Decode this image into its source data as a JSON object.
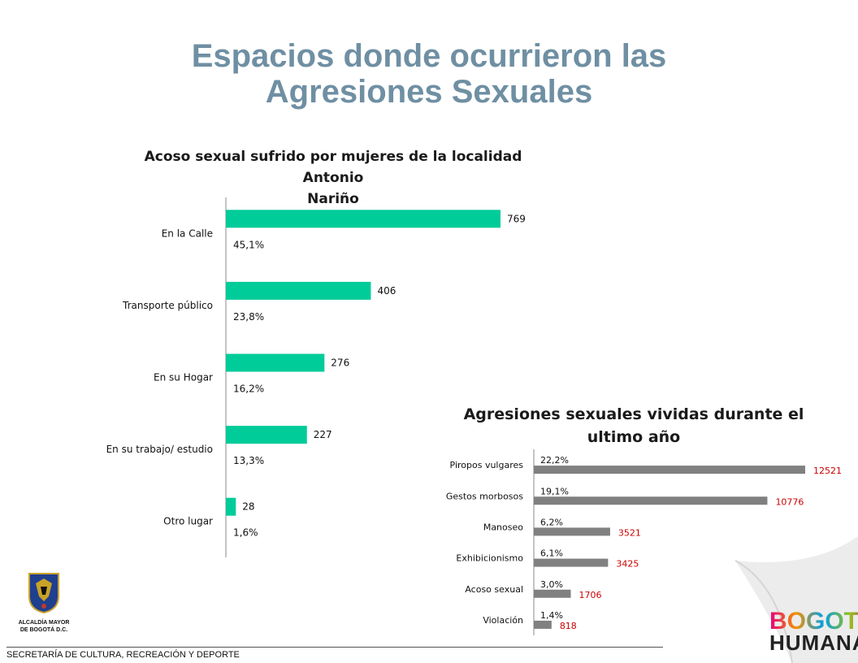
{
  "slide": {
    "title_line1": "Espacios donde ocurrieron las",
    "title_line2": "Agresiones Sexuales",
    "footer": "SECRETARÍA DE CULTURA, RECREACIÓN Y DEPORTE",
    "logo_left_line1": "ALCALDÍA MAYOR",
    "logo_left_line2": "DE BOGOTÁ D.C.",
    "logo_right_line1": "BOGOTÁ",
    "logo_right_line2": "HUMANA",
    "colors": {
      "title": "#6f8fa3",
      "bar1": "#00cc99",
      "bar2": "#808080",
      "value2": "#cc0000"
    }
  },
  "chart_data": [
    {
      "type": "bar",
      "orientation": "horizontal",
      "title_line1": "Acoso sexual sufrido por mujeres de la localidad Antonio",
      "title_line2": "Nariño",
      "categories": [
        "En la Calle",
        "Transporte público",
        "En su Hogar",
        "En su trabajo/ estudio",
        "Otro lugar"
      ],
      "values": [
        769,
        406,
        276,
        227,
        28
      ],
      "percent_labels": [
        "45,1%",
        "23,8%",
        "16,2%",
        "13,3%",
        "1,6%"
      ],
      "xlim": [
        0,
        800
      ]
    },
    {
      "type": "bar",
      "orientation": "horizontal",
      "title_line1": "Agresiones sexuales vividas durante el",
      "title_line2": "ultimo año",
      "categories": [
        "Piropos vulgares",
        "Gestos morbosos",
        "Manoseo",
        "Exhibicionismo",
        "Acoso sexual",
        "Violación"
      ],
      "values": [
        12521,
        10776,
        3521,
        3425,
        1706,
        818
      ],
      "percent_labels": [
        "22,2%",
        "19,1%",
        "6,2%",
        "6,1%",
        "3,0%",
        "1,4%"
      ],
      "xlim": [
        0,
        12521
      ]
    }
  ]
}
